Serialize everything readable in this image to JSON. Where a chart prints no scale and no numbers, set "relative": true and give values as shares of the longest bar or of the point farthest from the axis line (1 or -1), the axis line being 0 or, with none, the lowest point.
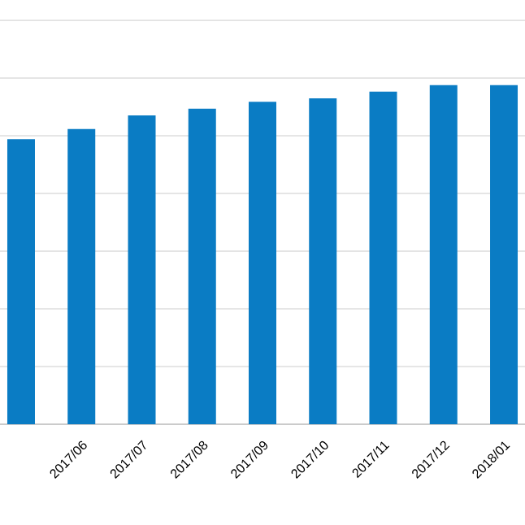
{
  "chart_data": {
    "type": "bar",
    "relative": true,
    "categories": [
      null,
      "2017/06",
      "2017/07",
      "2017/08",
      "2017/09",
      "2017/10",
      "2017/11",
      "2017/12",
      "2018/01"
    ],
    "values": [
      0.84,
      0.87,
      0.91,
      0.93,
      0.95,
      0.96,
      0.98,
      1,
      1
    ],
    "color": "#0a7cc4",
    "grid": "y"
  }
}
